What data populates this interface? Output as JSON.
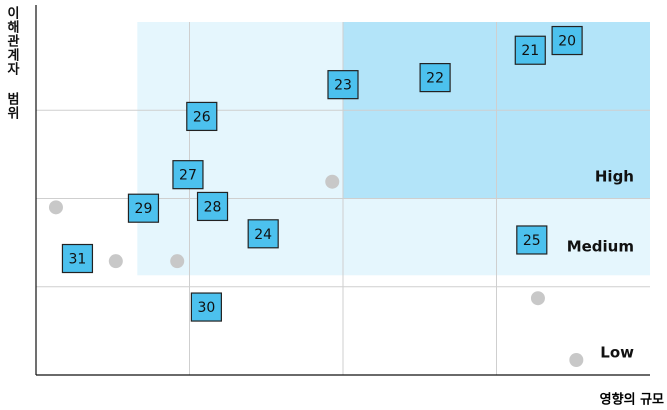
{
  "chart_data": {
    "type": "scatter",
    "xlabel": "영향의 규모",
    "ylabel": "이해관계자 범위",
    "xlim": [
      0,
      4
    ],
    "ylim": [
      0,
      4
    ],
    "xticks": [
      1,
      2,
      3
    ],
    "yticks": [
      1,
      2,
      3
    ],
    "grid": true,
    "zones": [
      {
        "name": "Medium",
        "color": "#e5f6fd",
        "x": [
          0.66,
          4
        ],
        "y": [
          1.13,
          4
        ]
      },
      {
        "name": "High",
        "color": "#b3e4f9",
        "x": [
          2,
          4
        ],
        "y": [
          2,
          4
        ]
      },
      {
        "name": "Low"
      }
    ],
    "series": [
      {
        "color": "#4cc1ee",
        "x": [
          3.46,
          3.22,
          2.6,
          2.0,
          1.08,
          0.99,
          1.15,
          0.7,
          1.48,
          3.23,
          0.27,
          1.11
        ],
        "values": [
          3.79,
          3.68,
          3.37,
          3.29,
          2.93,
          2.27,
          1.91,
          1.89,
          1.6,
          1.53,
          1.32,
          0.77
        ],
        "labels": [
          "20",
          "21",
          "22",
          "23",
          "26",
          "27",
          "28",
          "29",
          "24",
          "25",
          "31",
          "30"
        ]
      },
      {
        "color": "#c8c8c8",
        "x": [
          0.13,
          0.52,
          0.92,
          1.93,
          3.27,
          3.52
        ],
        "values": [
          1.9,
          1.29,
          1.29,
          2.19,
          0.87,
          0.17
        ]
      }
    ]
  }
}
